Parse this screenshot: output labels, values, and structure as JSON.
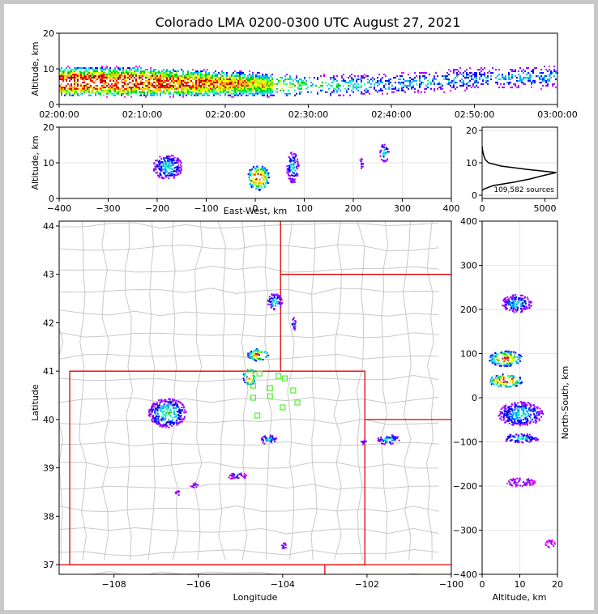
{
  "title": "Colorado LMA 0200-0300 UTC August 27, 2021",
  "chart_data": [
    {
      "id": "time_height",
      "type": "heatmap",
      "ylabel": "Altitude, km",
      "xlabel": "",
      "x_ticks": [
        "02:00:00",
        "02:10:00",
        "02:20:00",
        "02:30:00",
        "02:40:00",
        "02:50:00",
        "03:00:00"
      ],
      "xlim": [
        "02:00:00",
        "03:00:00"
      ],
      "ylim": [
        0,
        20
      ],
      "y_ticks": [
        0,
        10,
        20
      ],
      "density_band": [
        {
          "t_min": 0,
          "center_km": 6.5,
          "height_km": 4,
          "intensity": 1.0
        },
        {
          "t_min": 10,
          "center_km": 6.5,
          "height_km": 4,
          "intensity": 0.95
        },
        {
          "t_min": 20,
          "center_km": 6,
          "height_km": 3.5,
          "intensity": 0.8
        },
        {
          "t_min": 30,
          "center_km": 5.5,
          "height_km": 3,
          "intensity": 0.45
        },
        {
          "t_min": 40,
          "center_km": 6,
          "height_km": 3,
          "intensity": 0.3
        },
        {
          "t_min": 50,
          "center_km": 7.5,
          "height_km": 3,
          "intensity": 0.3
        },
        {
          "t_min": 60,
          "center_km": 8,
          "height_km": 3,
          "intensity": 0.3
        }
      ]
    },
    {
      "id": "ew_height",
      "type": "heatmap",
      "xlabel": "East-West, km",
      "ylabel": "Altitude, km",
      "xlim": [
        -400,
        400
      ],
      "ylim": [
        0,
        20
      ],
      "x_ticks": [
        -400,
        -300,
        -200,
        -100,
        0,
        100,
        200,
        300,
        400
      ],
      "y_ticks": [
        0,
        10,
        20
      ],
      "clusters": [
        {
          "x_km": -180,
          "y_km": 9,
          "w_km": 60,
          "h_km": 7,
          "intensity": 0.35
        },
        {
          "x_km": 5,
          "y_km": 6,
          "w_km": 45,
          "h_km": 7,
          "intensity": 1.0
        },
        {
          "x_km": 75,
          "y_km": 9,
          "w_km": 25,
          "h_km": 9,
          "intensity": 0.3
        },
        {
          "x_km": 215,
          "y_km": 10,
          "w_km": 8,
          "h_km": 3,
          "intensity": 0.2
        },
        {
          "x_km": 262,
          "y_km": 13,
          "w_km": 20,
          "h_km": 5,
          "intensity": 0.35
        }
      ]
    },
    {
      "id": "altitude_histogram",
      "type": "line",
      "xlim": [
        0,
        6000
      ],
      "ylim": [
        0,
        20
      ],
      "x_ticks": [
        0,
        5000
      ],
      "y_ticks": [
        0,
        10,
        20
      ],
      "annotation": "109,582 sources",
      "profile": [
        {
          "alt_km": 1.5,
          "count": 0
        },
        {
          "alt_km": 2,
          "count": 200
        },
        {
          "alt_km": 3,
          "count": 900
        },
        {
          "alt_km": 4,
          "count": 2500
        },
        {
          "alt_km": 5,
          "count": 3800
        },
        {
          "alt_km": 6,
          "count": 4800
        },
        {
          "alt_km": 7,
          "count": 5900
        },
        {
          "alt_km": 8,
          "count": 3500
        },
        {
          "alt_km": 9,
          "count": 1500
        },
        {
          "alt_km": 10,
          "count": 500
        },
        {
          "alt_km": 11,
          "count": 250
        },
        {
          "alt_km": 12,
          "count": 150
        },
        {
          "alt_km": 13,
          "count": 80
        },
        {
          "alt_km": 14,
          "count": 30
        },
        {
          "alt_km": 15,
          "count": 5
        }
      ]
    },
    {
      "id": "plan_view",
      "type": "heatmap",
      "xlabel": "Longitude",
      "ylabel": "Latitude",
      "xlim": [
        -109.3,
        -100
      ],
      "ylim": [
        36.8,
        44.1
      ],
      "x_ticks": [
        -108,
        -106,
        -104,
        -102,
        -100
      ],
      "y_ticks": [
        37,
        38,
        39,
        40,
        41,
        42,
        43,
        44
      ],
      "clusters": [
        {
          "lon": -106.75,
          "lat": 40.15,
          "w": 0.9,
          "h": 0.6,
          "intensity": 0.4
        },
        {
          "lon": -104.8,
          "lat": 40.9,
          "w": 0.3,
          "h": 0.35,
          "intensity": 1.0
        },
        {
          "lon": -104.6,
          "lat": 41.35,
          "w": 0.5,
          "h": 0.25,
          "intensity": 0.85
        },
        {
          "lon": -104.2,
          "lat": 42.45,
          "w": 0.35,
          "h": 0.35,
          "intensity": 0.35
        },
        {
          "lon": -103.75,
          "lat": 42.0,
          "w": 0.1,
          "h": 0.3,
          "intensity": 0.25
        },
        {
          "lon": -101.5,
          "lat": 39.6,
          "w": 0.55,
          "h": 0.2,
          "intensity": 0.35
        },
        {
          "lon": -104.35,
          "lat": 39.6,
          "w": 0.4,
          "h": 0.2,
          "intensity": 0.3
        },
        {
          "lon": -105.1,
          "lat": 38.85,
          "w": 0.45,
          "h": 0.15,
          "intensity": 0.2
        },
        {
          "lon": -106.1,
          "lat": 38.65,
          "w": 0.2,
          "h": 0.1,
          "intensity": 0.2
        },
        {
          "lon": -106.5,
          "lat": 38.5,
          "w": 0.15,
          "h": 0.1,
          "intensity": 0.15
        },
        {
          "lon": -104.0,
          "lat": 37.4,
          "w": 0.15,
          "h": 0.15,
          "intensity": 0.15
        },
        {
          "lon": -102.1,
          "lat": 39.55,
          "w": 0.15,
          "h": 0.1,
          "intensity": 0.2
        }
      ],
      "stations": [
        {
          "lon": -104.55,
          "lat": 40.95
        },
        {
          "lon": -104.1,
          "lat": 40.9
        },
        {
          "lon": -103.95,
          "lat": 40.85
        },
        {
          "lon": -104.7,
          "lat": 40.7
        },
        {
          "lon": -104.3,
          "lat": 40.65
        },
        {
          "lon": -103.75,
          "lat": 40.6
        },
        {
          "lon": -104.7,
          "lat": 40.45
        },
        {
          "lon": -104.3,
          "lat": 40.48
        },
        {
          "lon": -103.65,
          "lat": 40.35
        },
        {
          "lon": -104.0,
          "lat": 40.25
        },
        {
          "lon": -104.6,
          "lat": 40.08
        }
      ]
    },
    {
      "id": "ns_height",
      "type": "heatmap",
      "xlabel": "Altitude, km",
      "ylabel": "North-South, km",
      "xlim": [
        0,
        20
      ],
      "ylim": [
        -400,
        400
      ],
      "x_ticks": [
        0,
        10,
        20
      ],
      "y_ticks": [
        -400,
        -300,
        -200,
        -100,
        0,
        100,
        200,
        300,
        400
      ],
      "clusters": [
        {
          "alt_km": 9,
          "ns_km": 215,
          "w_km": 8,
          "h_km": 40,
          "intensity": 0.3
        },
        {
          "alt_km": 6,
          "ns_km": 90,
          "w_km": 9,
          "h_km": 35,
          "intensity": 0.85
        },
        {
          "alt_km": 6,
          "ns_km": 40,
          "w_km": 9,
          "h_km": 30,
          "intensity": 1.0
        },
        {
          "alt_km": 10,
          "ns_km": -35,
          "w_km": 12,
          "h_km": 55,
          "intensity": 0.35
        },
        {
          "alt_km": 10,
          "ns_km": -90,
          "w_km": 10,
          "h_km": 20,
          "intensity": 0.35
        },
        {
          "alt_km": 10,
          "ns_km": -190,
          "w_km": 8,
          "h_km": 20,
          "intensity": 0.15
        },
        {
          "alt_km": 18,
          "ns_km": -330,
          "w_km": 3,
          "h_km": 20,
          "intensity": 0.1
        }
      ]
    }
  ]
}
